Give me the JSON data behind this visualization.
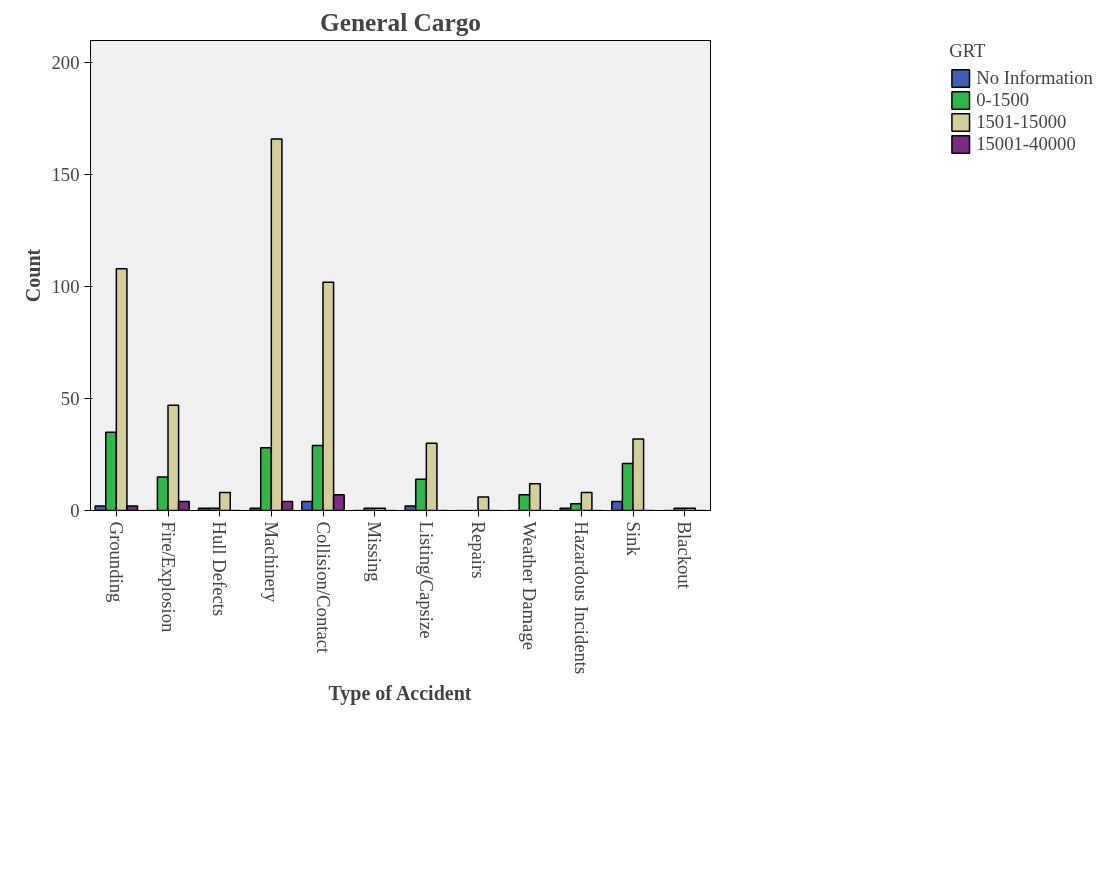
{
  "chart_data": {
    "type": "bar",
    "title": "General Cargo",
    "xlabel": "Type of Accident",
    "ylabel": "Count",
    "legend_title": "GRT",
    "categories": [
      "Grounding",
      "Fire/Explosion",
      "Hull Defects",
      "Machinery",
      "Collision/Contact",
      "Missing",
      "Listing/Capsize",
      "Repairs",
      "Weather Damage",
      "Hazardous Incidents",
      "Sink",
      "Blackout"
    ],
    "series": [
      {
        "name": "No Information",
        "color": "#3e5fb5",
        "values": [
          2,
          0,
          1,
          1,
          4,
          0,
          2,
          0,
          0,
          1,
          4,
          0
        ]
      },
      {
        "name": "0-1500",
        "color": "#2eb84a",
        "values": [
          35,
          15,
          1,
          28,
          29,
          1,
          14,
          0,
          7,
          3,
          21,
          1
        ]
      },
      {
        "name": "1501-15000",
        "color": "#d4cf9a",
        "values": [
          108,
          47,
          8,
          166,
          102,
          1,
          30,
          6,
          12,
          8,
          32,
          1
        ]
      },
      {
        "name": "15001-40000",
        "color": "#7f2a86",
        "values": [
          2,
          4,
          0,
          4,
          7,
          0,
          0,
          0,
          0,
          0,
          0,
          0
        ]
      }
    ],
    "ylim": [
      0,
      210
    ],
    "yticks": [
      0,
      50,
      100,
      150,
      200
    ],
    "grid": false,
    "legend": "right"
  }
}
